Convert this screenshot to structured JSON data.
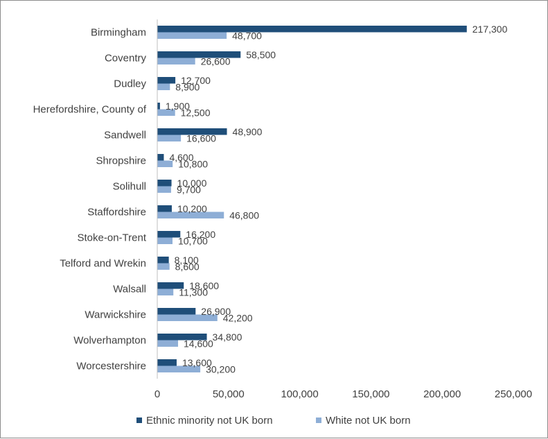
{
  "chart_data": {
    "type": "bar",
    "orientation": "horizontal",
    "categories": [
      "Birmingham",
      "Coventry",
      "Dudley",
      "Herefordshire, County of",
      "Sandwell",
      "Shropshire",
      "Solihull",
      "Staffordshire",
      "Stoke-on-Trent",
      "Telford and Wrekin",
      "Walsall",
      "Warwickshire",
      "Wolverhampton",
      "Worcestershire"
    ],
    "series": [
      {
        "name": "Ethnic minority not UK born",
        "color": "#1f4e79",
        "values": [
          217300,
          58500,
          12700,
          1900,
          48900,
          4600,
          10000,
          10200,
          16200,
          8100,
          18600,
          26900,
          34800,
          13600
        ],
        "labels": [
          "217,300",
          "58,500",
          "12,700",
          "1,900",
          "48,900",
          "4,600",
          "10,000",
          "10,200",
          "16,200",
          "8,100",
          "18,600",
          "26,900",
          "34,800",
          "13,600"
        ]
      },
      {
        "name": "White not UK born",
        "color": "#8eaed6",
        "values": [
          48700,
          26600,
          8900,
          12500,
          16600,
          10800,
          9700,
          46800,
          10700,
          8600,
          11300,
          42200,
          14600,
          30200
        ],
        "labels": [
          "48,700",
          "26,600",
          "8,900",
          "12,500",
          "16,600",
          "10,800",
          "9,700",
          "46,800",
          "10,700",
          "8,600",
          "11,300",
          "42,200",
          "14,600",
          "30,200"
        ]
      }
    ],
    "xlim": [
      0,
      250000
    ],
    "x_ticks": [
      0,
      50000,
      100000,
      150000,
      200000,
      250000
    ],
    "x_tick_labels": [
      "0",
      "50,000",
      "100,000",
      "150,000",
      "200,000",
      "250,000"
    ],
    "grid": false,
    "legend": "bottom-center",
    "title": "",
    "xlabel": "",
    "ylabel": ""
  }
}
